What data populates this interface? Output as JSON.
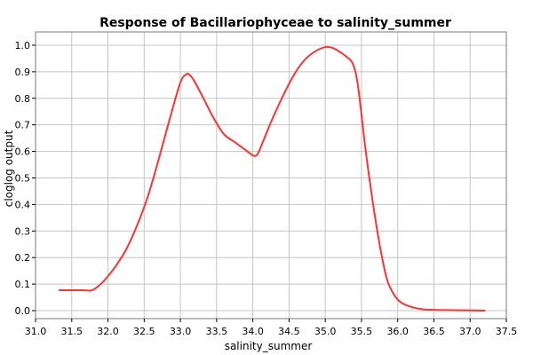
{
  "chart_data": {
    "type": "line",
    "title": "Response of Bacillariophyceae to salinity_summer",
    "xlabel": "salinity_summer",
    "ylabel": "cloglog output",
    "xlim": [
      31.0,
      37.5
    ],
    "ylim": [
      -0.03,
      1.05
    ],
    "x_ticks": [
      31.0,
      31.5,
      32.0,
      32.5,
      33.0,
      33.5,
      34.0,
      34.5,
      35.0,
      35.5,
      36.0,
      36.5,
      37.0,
      37.5
    ],
    "x_tick_labels": [
      "31.0",
      "31.5",
      "32.0",
      "32.5",
      "33.0",
      "33.5",
      "34.0",
      "34.5",
      "35.0",
      "35.5",
      "36.0",
      "36.5",
      "37.0",
      "37.5"
    ],
    "y_ticks": [
      0.0,
      0.1,
      0.2,
      0.3,
      0.4,
      0.5,
      0.6,
      0.7,
      0.8,
      0.9,
      1.0
    ],
    "y_tick_labels": [
      "0.0",
      "0.1",
      "0.2",
      "0.3",
      "0.4",
      "0.5",
      "0.6",
      "0.7",
      "0.8",
      "0.9",
      "1.0"
    ],
    "grid": true,
    "line_color": "#ff3333",
    "series": [
      {
        "x": [
          31.33,
          31.5,
          31.65,
          31.78,
          31.9,
          32.0,
          32.1,
          32.25,
          32.4,
          32.55,
          32.7,
          32.85,
          33.0,
          33.08,
          33.12,
          33.18,
          33.3,
          33.45,
          33.6,
          33.75,
          33.9,
          34.0,
          34.05,
          34.1,
          34.25,
          34.4,
          34.55,
          34.7,
          34.85,
          35.0,
          35.1,
          35.2,
          35.3,
          35.38,
          35.45,
          35.55,
          35.65,
          35.75,
          35.85,
          35.95,
          36.05,
          36.2,
          36.35,
          36.5,
          36.7,
          37.0,
          37.2
        ],
        "y": [
          0.077,
          0.077,
          0.077,
          0.077,
          0.1,
          0.13,
          0.165,
          0.23,
          0.32,
          0.43,
          0.57,
          0.72,
          0.86,
          0.89,
          0.89,
          0.87,
          0.81,
          0.73,
          0.665,
          0.635,
          0.605,
          0.585,
          0.585,
          0.61,
          0.71,
          0.8,
          0.88,
          0.94,
          0.975,
          0.993,
          0.99,
          0.975,
          0.955,
          0.93,
          0.85,
          0.62,
          0.42,
          0.25,
          0.12,
          0.06,
          0.03,
          0.013,
          0.005,
          0.003,
          0.002,
          0.001,
          0.0
        ]
      }
    ]
  }
}
